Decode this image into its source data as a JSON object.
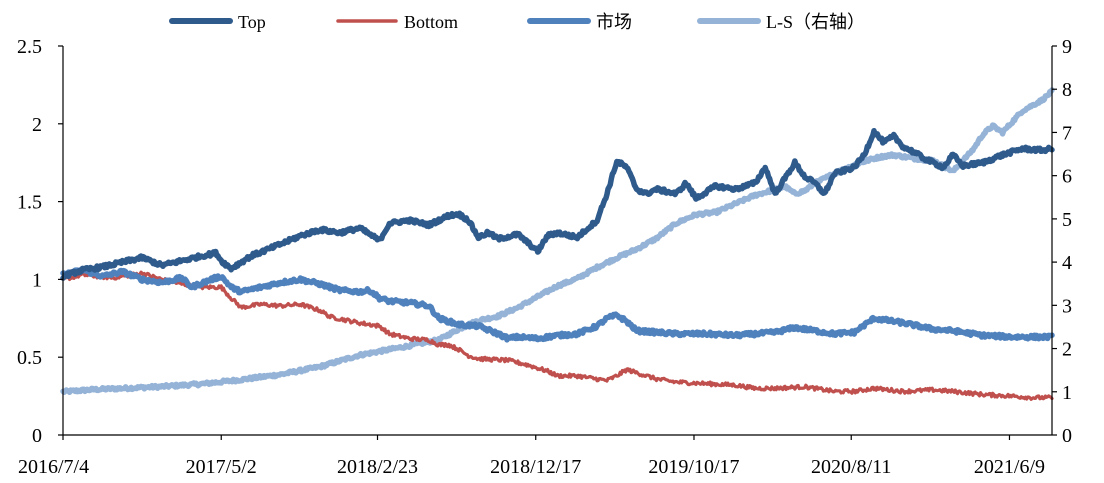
{
  "chart_data": {
    "type": "line",
    "legend_position": "top",
    "grid": false,
    "y_left": {
      "min": 0,
      "max": 2.5,
      "ticks": [
        "0",
        "0.5",
        "1",
        "1.5",
        "2",
        "2.5"
      ]
    },
    "y_right": {
      "min": 0,
      "max": 9,
      "ticks": [
        "0",
        "1",
        "2",
        "3",
        "4",
        "5",
        "6",
        "7",
        "8",
        "9"
      ]
    },
    "x_tick_labels": [
      "2016/7/4",
      "2017/5/2",
      "2018/2/23",
      "2018/12/17",
      "2019/10/17",
      "2020/8/11",
      "2021/6/9"
    ],
    "series": [
      {
        "name": "Top",
        "axis": "left",
        "color": "#2E5A8C",
        "x": [
          0,
          0.02,
          0.04,
          0.06,
          0.08,
          0.1,
          0.12,
          0.14,
          0.155,
          0.16,
          0.17,
          0.19,
          0.21,
          0.24,
          0.26,
          0.28,
          0.3,
          0.32,
          0.33,
          0.35,
          0.37,
          0.39,
          0.4,
          0.41,
          0.42,
          0.43,
          0.44,
          0.46,
          0.48,
          0.49,
          0.5,
          0.52,
          0.54,
          0.55,
          0.56,
          0.57,
          0.58,
          0.59,
          0.6,
          0.62,
          0.63,
          0.64,
          0.66,
          0.68,
          0.7,
          0.71,
          0.72,
          0.74,
          0.75,
          0.76,
          0.77,
          0.78,
          0.8,
          0.81,
          0.82,
          0.83,
          0.84,
          0.85,
          0.86,
          0.87,
          0.88,
          0.89,
          0.9,
          0.91,
          0.93,
          0.95,
          0.97,
          0.99,
          1.0
        ],
        "y": [
          1.02,
          1.06,
          1.08,
          1.11,
          1.14,
          1.09,
          1.12,
          1.15,
          1.17,
          1.12,
          1.07,
          1.15,
          1.2,
          1.28,
          1.32,
          1.3,
          1.33,
          1.25,
          1.36,
          1.38,
          1.35,
          1.41,
          1.42,
          1.38,
          1.27,
          1.3,
          1.26,
          1.29,
          1.18,
          1.28,
          1.3,
          1.27,
          1.38,
          1.55,
          1.76,
          1.72,
          1.58,
          1.55,
          1.58,
          1.55,
          1.62,
          1.52,
          1.6,
          1.58,
          1.62,
          1.72,
          1.55,
          1.75,
          1.66,
          1.62,
          1.55,
          1.68,
          1.72,
          1.8,
          1.95,
          1.88,
          1.92,
          1.85,
          1.82,
          1.78,
          1.75,
          1.72,
          1.8,
          1.73,
          1.75,
          1.8,
          1.84,
          1.83,
          1.84
        ]
      },
      {
        "name": "Bottom",
        "axis": "left",
        "color": "#C0504D",
        "x": [
          0,
          0.02,
          0.05,
          0.08,
          0.09,
          0.1,
          0.12,
          0.14,
          0.16,
          0.17,
          0.18,
          0.2,
          0.22,
          0.24,
          0.26,
          0.27,
          0.3,
          0.32,
          0.33,
          0.35,
          0.37,
          0.38,
          0.39,
          0.4,
          0.41,
          0.42,
          0.45,
          0.47,
          0.49,
          0.5,
          0.52,
          0.54,
          0.55,
          0.56,
          0.57,
          0.58,
          0.6,
          0.62,
          0.65,
          0.68,
          0.7,
          0.72,
          0.75,
          0.78,
          0.8,
          0.82,
          0.85,
          0.88,
          0.9,
          0.93,
          0.96,
          0.98,
          1.0
        ],
        "y": [
          1.0,
          1.03,
          1.01,
          1.04,
          1.02,
          1.0,
          0.97,
          0.95,
          0.95,
          0.88,
          0.82,
          0.84,
          0.83,
          0.84,
          0.8,
          0.76,
          0.72,
          0.7,
          0.65,
          0.62,
          0.61,
          0.58,
          0.58,
          0.55,
          0.51,
          0.49,
          0.48,
          0.45,
          0.41,
          0.38,
          0.38,
          0.36,
          0.35,
          0.38,
          0.42,
          0.4,
          0.36,
          0.34,
          0.33,
          0.32,
          0.3,
          0.3,
          0.31,
          0.28,
          0.28,
          0.3,
          0.28,
          0.29,
          0.28,
          0.26,
          0.25,
          0.24,
          0.24
        ]
      },
      {
        "name": "市场",
        "axis": "left",
        "color": "#4F81BD",
        "x": [
          0,
          0.02,
          0.04,
          0.06,
          0.08,
          0.1,
          0.12,
          0.13,
          0.15,
          0.16,
          0.17,
          0.18,
          0.2,
          0.22,
          0.24,
          0.26,
          0.28,
          0.3,
          0.31,
          0.32,
          0.33,
          0.35,
          0.37,
          0.38,
          0.4,
          0.42,
          0.44,
          0.45,
          0.46,
          0.48,
          0.5,
          0.52,
          0.54,
          0.55,
          0.56,
          0.57,
          0.58,
          0.6,
          0.62,
          0.65,
          0.68,
          0.7,
          0.72,
          0.74,
          0.76,
          0.78,
          0.8,
          0.82,
          0.85,
          0.88,
          0.9,
          0.93,
          0.96,
          0.98,
          1.0
        ],
        "y": [
          1.03,
          1.06,
          1.02,
          1.05,
          1.0,
          0.98,
          1.01,
          0.95,
          1.0,
          1.02,
          0.95,
          0.92,
          0.95,
          0.98,
          1.0,
          0.97,
          0.93,
          0.92,
          0.93,
          0.88,
          0.86,
          0.85,
          0.83,
          0.75,
          0.71,
          0.7,
          0.65,
          0.62,
          0.63,
          0.62,
          0.64,
          0.65,
          0.7,
          0.75,
          0.77,
          0.73,
          0.67,
          0.66,
          0.65,
          0.65,
          0.64,
          0.65,
          0.66,
          0.69,
          0.67,
          0.65,
          0.66,
          0.75,
          0.72,
          0.68,
          0.67,
          0.64,
          0.63,
          0.63,
          0.63
        ]
      },
      {
        "name": "L-S（右轴）",
        "axis": "right",
        "color": "#95B3D7",
        "x": [
          0,
          0.03,
          0.06,
          0.1,
          0.14,
          0.18,
          0.22,
          0.26,
          0.3,
          0.34,
          0.38,
          0.4,
          0.42,
          0.44,
          0.46,
          0.48,
          0.5,
          0.52,
          0.54,
          0.56,
          0.58,
          0.6,
          0.62,
          0.64,
          0.66,
          0.68,
          0.7,
          0.72,
          0.73,
          0.74,
          0.75,
          0.76,
          0.78,
          0.8,
          0.82,
          0.83,
          0.84,
          0.86,
          0.88,
          0.9,
          0.91,
          0.92,
          0.93,
          0.94,
          0.95,
          0.97,
          0.99,
          1.0
        ],
        "y": [
          1.0,
          1.05,
          1.08,
          1.12,
          1.18,
          1.28,
          1.4,
          1.58,
          1.85,
          2.02,
          2.2,
          2.45,
          2.65,
          2.75,
          2.95,
          3.2,
          3.45,
          3.62,
          3.88,
          4.1,
          4.3,
          4.55,
          4.9,
          5.1,
          5.15,
          5.35,
          5.55,
          5.68,
          5.75,
          5.58,
          5.65,
          5.82,
          6.05,
          6.25,
          6.4,
          6.45,
          6.48,
          6.4,
          6.35,
          6.1,
          6.35,
          6.6,
          6.95,
          7.15,
          7.0,
          7.5,
          7.75,
          7.95
        ]
      }
    ]
  }
}
